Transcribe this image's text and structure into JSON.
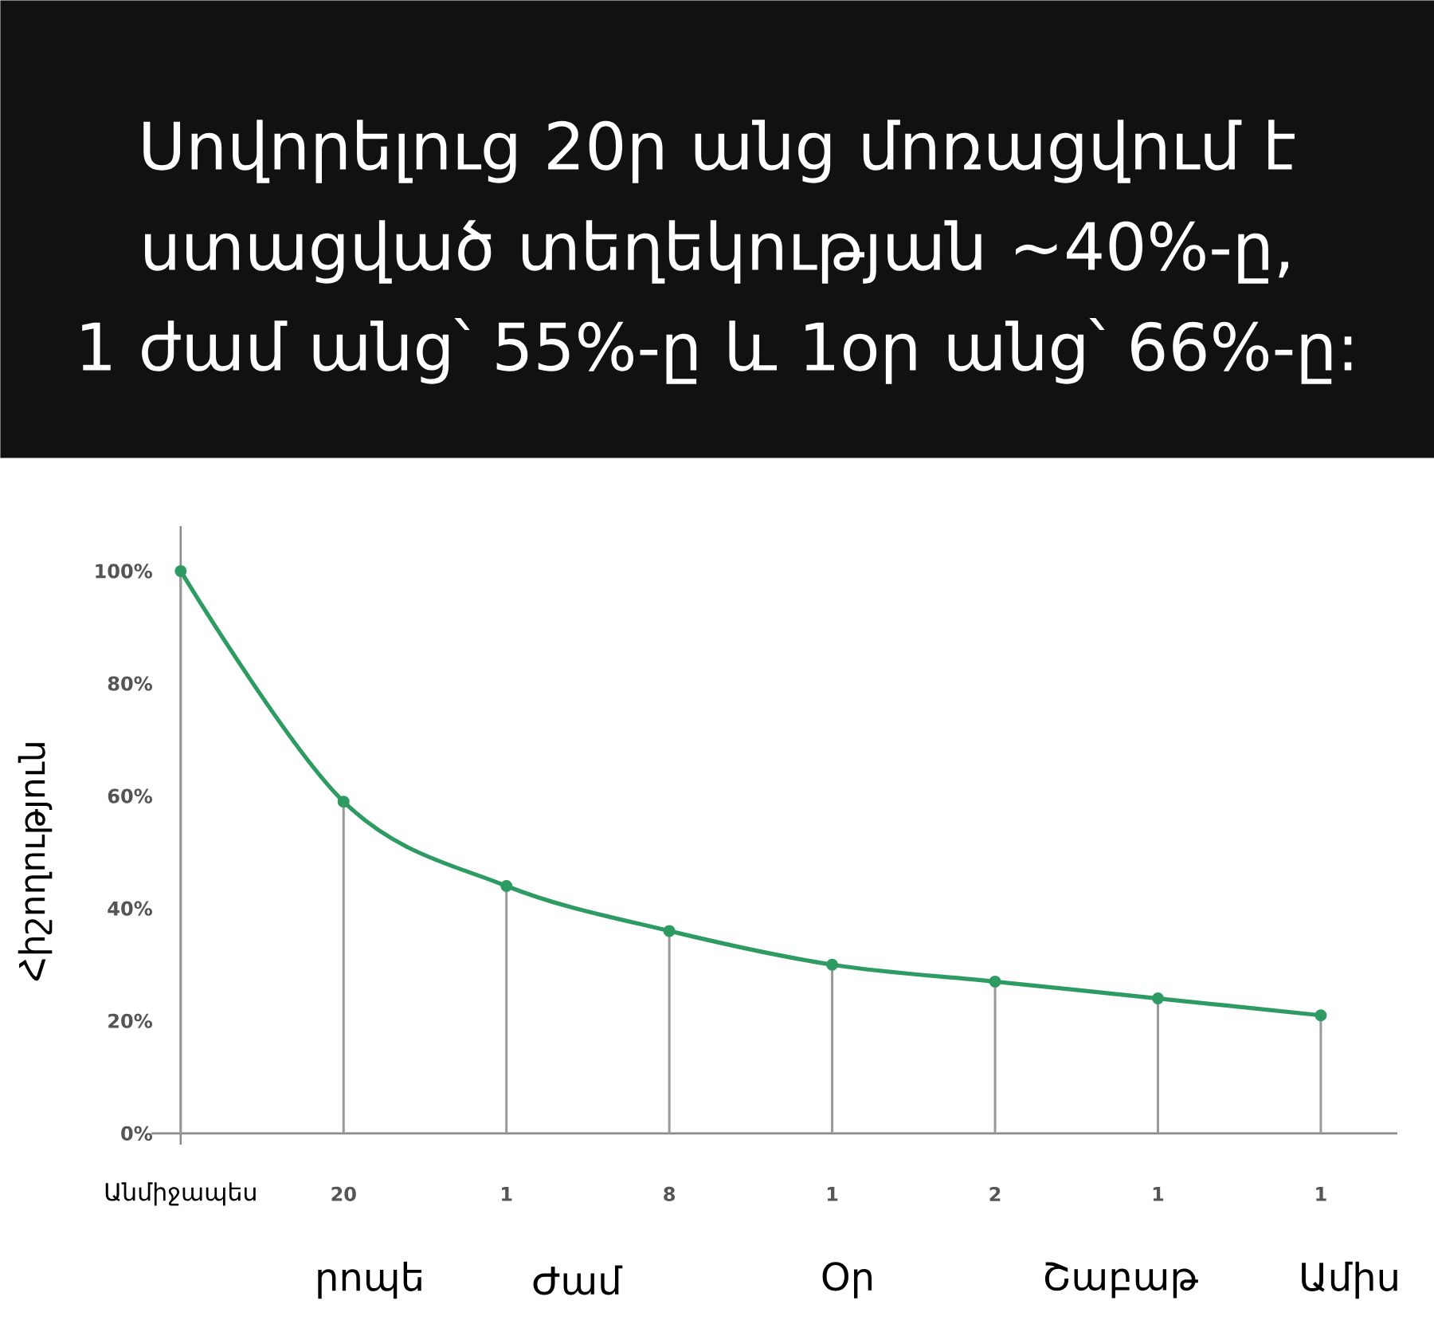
{
  "chart_data": {
    "type": "line",
    "title": "Սովորելուց 20ր անց մոռացվում է ստացված տեղեկության ~40%-ը, 1 ժամ անց՝ 55%-ը և 1օր անց՝ 66%-ը:",
    "ylabel": "Հիշողություն",
    "categories": [
      "Անմիջապես",
      "20",
      "1",
      "8",
      "1",
      "2",
      "1",
      "1"
    ],
    "series": [
      {
        "color": "#2e9b62",
        "values": [
          100,
          59,
          44,
          36,
          30,
          27,
          24,
          21
        ]
      },
      {
        "type": "lollipop",
        "color": "#2e9b62",
        "values": [
          100,
          59,
          44,
          36,
          30,
          27,
          24,
          21
        ]
      }
    ],
    "ylim": [
      -2,
      108
    ],
    "yticks": [
      {
        "value": 0,
        "label": "0%"
      },
      {
        "value": 20,
        "label": "20%"
      },
      {
        "value": 40,
        "label": "40%"
      },
      {
        "value": 60,
        "label": "60%"
      },
      {
        "value": 80,
        "label": "80%"
      },
      {
        "value": 100,
        "label": "100%"
      }
    ],
    "annotations": [
      "րոպե",
      "Ժամ",
      "Օր",
      "Շաբաթ",
      "Ամիս"
    ]
  }
}
